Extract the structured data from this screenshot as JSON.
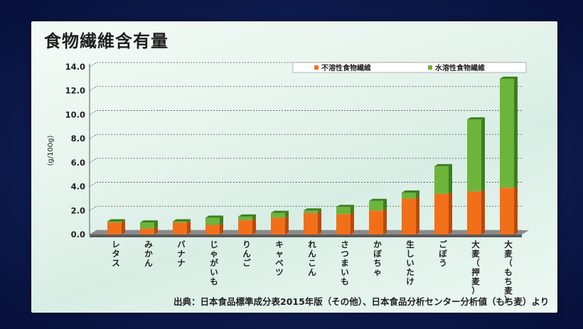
{
  "slide": {
    "title": "食物繊維含有量",
    "source": "出典：日本食品標準成分表2015年版（その他）、日本食品分析センター分析値（もち麦）より"
  },
  "colors": {
    "insoluble": "#f26f1a",
    "insoluble_dark": "#b84a0a",
    "soluble": "#6db53a",
    "soluble_dark": "#3e7d1f",
    "floor": "#5a5a5a"
  },
  "chart_data": {
    "type": "bar",
    "stacked": true,
    "ylabel": "(g/100g)",
    "ylim": [
      0,
      14
    ],
    "yticks": [
      "0.0",
      "2.0",
      "4.0",
      "6.0",
      "8.0",
      "10.0",
      "12.0",
      "14.0"
    ],
    "grid": true,
    "legend_position": "top-right",
    "categories": [
      "レタス",
      "みかん",
      "バナナ",
      "じゃがいも",
      "りんご",
      "キャベツ",
      "れんこん",
      "さつまいも",
      "かぼちゃ",
      "生しいたけ",
      "ごぼう",
      "大麦（押麦）",
      "大麦（もち麦）"
    ],
    "series": [
      {
        "name": "不溶性食物繊維",
        "values": [
          1.0,
          0.5,
          1.0,
          0.8,
          1.2,
          1.4,
          1.8,
          1.7,
          2.0,
          3.0,
          3.4,
          3.6,
          3.9
        ]
      },
      {
        "name": "水溶性食物繊維",
        "values": [
          0.1,
          0.5,
          0.1,
          0.6,
          0.3,
          0.4,
          0.2,
          0.6,
          0.8,
          0.5,
          2.3,
          6.0,
          9.1
        ]
      }
    ]
  }
}
